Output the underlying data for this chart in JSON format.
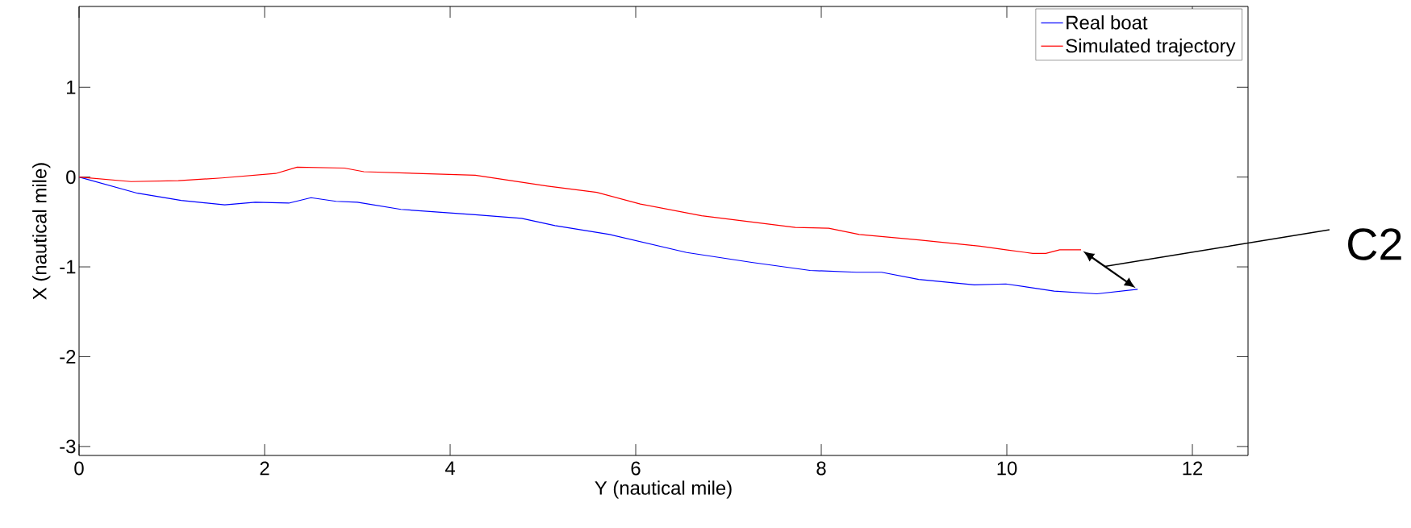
{
  "chart_data": {
    "type": "line",
    "xlabel": "Y (nautical mile)",
    "ylabel": "X (nautical mile)",
    "xlim": [
      0,
      12.6
    ],
    "ylim": [
      -3.1,
      1.9
    ],
    "xticks": [
      0,
      2,
      4,
      6,
      8,
      10,
      12
    ],
    "yticks": [
      -3,
      -2,
      -1,
      0,
      1
    ],
    "legend": "top right",
    "series": [
      {
        "name": "Real boat",
        "color": "#0000ff",
        "x": [
          0,
          0.63,
          1.1,
          1.57,
          1.9,
          2.26,
          2.5,
          2.77,
          3.0,
          3.47,
          4.27,
          4.77,
          5.13,
          5.72,
          6.55,
          7.25,
          7.88,
          8.38,
          8.65,
          9.05,
          9.65,
          9.99,
          10.51,
          10.97,
          11.41
        ],
        "values": [
          0,
          -0.18,
          -0.26,
          -0.31,
          -0.28,
          -0.29,
          -0.23,
          -0.27,
          -0.28,
          -0.36,
          -0.42,
          -0.46,
          -0.54,
          -0.64,
          -0.84,
          -0.95,
          -1.04,
          -1.06,
          -1.06,
          -1.14,
          -1.2,
          -1.19,
          -1.27,
          -1.3,
          -1.25
        ]
      },
      {
        "name": "Simulated trajectory",
        "color": "#ff0000",
        "x": [
          0,
          0.56,
          1.07,
          1.54,
          2.12,
          2.35,
          2.86,
          3.07,
          4.27,
          5.05,
          5.58,
          6.05,
          6.71,
          7.72,
          8.08,
          8.41,
          9.05,
          9.71,
          9.99,
          10.28,
          10.42,
          10.57,
          10.8
        ],
        "values": [
          0,
          -0.05,
          -0.04,
          -0.01,
          0.04,
          0.11,
          0.1,
          0.06,
          0.02,
          -0.1,
          -0.17,
          -0.3,
          -0.43,
          -0.56,
          -0.57,
          -0.64,
          -0.7,
          -0.77,
          -0.81,
          -0.85,
          -0.85,
          -0.81,
          -0.81
        ]
      }
    ],
    "annotations": [
      "C2"
    ]
  }
}
